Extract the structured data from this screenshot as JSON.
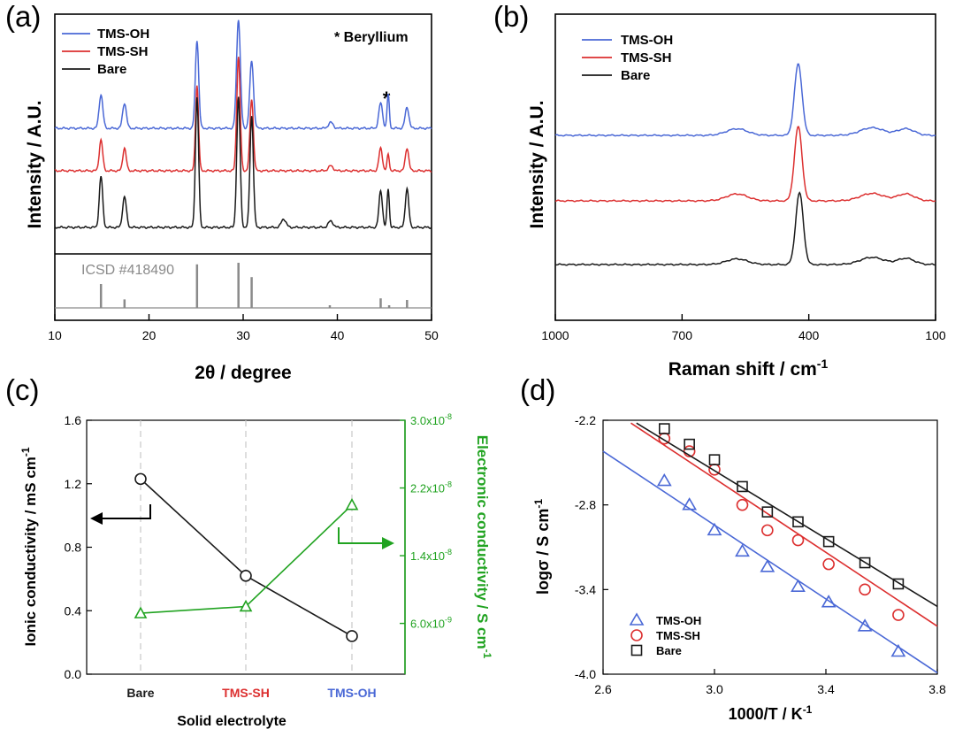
{
  "colors": {
    "blue": "#4a68d6",
    "red": "#dc2f2f",
    "black": "#1a1a1a",
    "green": "#21a321",
    "gray": "#8a8a8a",
    "grid": "#c8c8c8"
  },
  "chart_data": [
    {
      "panel": "(a)",
      "type": "line",
      "title": "",
      "xlabel": "2θ / degree",
      "ylabel": "Intensity / A.U.",
      "xlim": [
        10,
        50
      ],
      "xticks": [
        "10",
        "20",
        "30",
        "40",
        "50"
      ],
      "legend": [
        "TMS-OH",
        "TMS-SH",
        "Bare"
      ],
      "annotation": "* Beryllium",
      "star_mark": "*",
      "reference_label": "ICSD #418490",
      "series": [
        {
          "name": "TMS-OH",
          "color_key": "blue",
          "baseline": 0.0,
          "peaks": [
            [
              14.9,
              0.4,
              0.2
            ],
            [
              17.4,
              0.3,
              0.2
            ],
            [
              25.1,
              1.05,
              0.18
            ],
            [
              29.5,
              1.3,
              0.2
            ],
            [
              30.9,
              0.8,
              0.2
            ],
            [
              39.3,
              0.07,
              0.25
            ],
            [
              44.6,
              0.3,
              0.2
            ],
            [
              45.4,
              0.4,
              0.12
            ],
            [
              47.4,
              0.25,
              0.2
            ]
          ]
        },
        {
          "name": "TMS-SH",
          "color_key": "red",
          "baseline": 0.0,
          "peaks": [
            [
              14.9,
              0.38,
              0.18
            ],
            [
              17.4,
              0.28,
              0.18
            ],
            [
              25.1,
              1.05,
              0.16
            ],
            [
              29.5,
              1.4,
              0.18
            ],
            [
              30.9,
              0.88,
              0.18
            ],
            [
              39.3,
              0.06,
              0.25
            ],
            [
              44.6,
              0.28,
              0.18
            ],
            [
              45.4,
              0.2,
              0.12
            ],
            [
              47.4,
              0.28,
              0.18
            ]
          ]
        },
        {
          "name": "Bare",
          "color_key": "black",
          "baseline": 0.0,
          "peaks": [
            [
              14.9,
              0.55,
              0.18
            ],
            [
              17.4,
              0.33,
              0.2
            ],
            [
              25.1,
              1.4,
              0.17
            ],
            [
              29.5,
              1.4,
              0.18
            ],
            [
              30.9,
              1.2,
              0.18
            ],
            [
              34.3,
              0.09,
              0.25
            ],
            [
              39.3,
              0.07,
              0.25
            ],
            [
              44.6,
              0.4,
              0.18
            ],
            [
              45.4,
              0.42,
              0.12
            ],
            [
              47.4,
              0.42,
              0.18
            ]
          ]
        }
      ],
      "reference_peaks": [
        [
          14.9,
          0.45
        ],
        [
          17.4,
          0.16
        ],
        [
          25.1,
          0.82
        ],
        [
          29.5,
          0.85
        ],
        [
          30.9,
          0.58
        ],
        [
          39.2,
          0.05
        ],
        [
          44.6,
          0.18
        ],
        [
          45.5,
          0.05
        ],
        [
          47.4,
          0.15
        ]
      ]
    },
    {
      "panel": "(b)",
      "type": "line",
      "title": "",
      "xlabel": "Raman shift / cm",
      "xlabel_sup": "-1",
      "ylabel": "Intensity / A.U.",
      "xlim": [
        1000,
        100
      ],
      "xticks": [
        "1000",
        "700",
        "400",
        "100"
      ],
      "legend": [
        "TMS-OH",
        "TMS-SH",
        "Bare"
      ],
      "series": [
        {
          "name": "TMS-OH",
          "color_key": "blue",
          "peaks": [
            [
              425,
              1.3,
              9
            ],
            [
              570,
              0.12,
              25
            ],
            [
              250,
              0.14,
              28
            ],
            [
              170,
              0.12,
              20
            ]
          ]
        },
        {
          "name": "TMS-SH",
          "color_key": "red",
          "peaks": [
            [
              425,
              1.4,
              9
            ],
            [
              570,
              0.13,
              25
            ],
            [
              250,
              0.14,
              28
            ],
            [
              170,
              0.13,
              20
            ]
          ]
        },
        {
          "name": "Bare",
          "color_key": "black",
          "peaks": [
            [
              422,
              1.4,
              9
            ],
            [
              570,
              0.11,
              25
            ],
            [
              250,
              0.14,
              28
            ],
            [
              170,
              0.12,
              20
            ]
          ]
        }
      ]
    },
    {
      "panel": "(c)",
      "type": "line",
      "title": "",
      "xlabel": "Solid electrolyte",
      "ylabel": "Ionic conductivity / mS cm",
      "ylabel_sup": "-1",
      "y2label": "Electronic conductivity / S cm",
      "y2label_sup": "-1",
      "categories": [
        "Bare",
        "TMS-SH",
        "TMS-OH"
      ],
      "category_color_keys": [
        "black",
        "red",
        "blue"
      ],
      "ylim": [
        0.0,
        1.6
      ],
      "yticks": [
        "0.0",
        "0.4",
        "0.8",
        "1.2",
        "1.6"
      ],
      "y2ticks": [
        {
          "mant": "6.0x10",
          "exp": "-9",
          "value": 6e-09
        },
        {
          "mant": "1.4x10",
          "exp": "-8",
          "value": 1.4e-08
        },
        {
          "mant": "2.2x10",
          "exp": "-8",
          "value": 2.2e-08
        },
        {
          "mant": "3.0x10",
          "exp": "-8",
          "value": 3e-08
        }
      ],
      "y2lim": [
        0.0,
        3e-08
      ],
      "series": [
        {
          "name": "Ionic conductivity",
          "axis": "left",
          "marker": "circle",
          "color_key": "black",
          "values": [
            1.23,
            0.62,
            0.24
          ]
        },
        {
          "name": "Electronic conductivity",
          "axis": "right",
          "marker": "triangle",
          "color_key": "green",
          "values": [
            7.2e-09,
            8e-09,
            2e-08
          ]
        }
      ]
    },
    {
      "panel": "(d)",
      "type": "scatter",
      "title": "",
      "xlabel": "1000/T / K",
      "xlabel_sup": "-1",
      "ylabel": "logσ / S cm",
      "ylabel_sup": "-1",
      "xlim": [
        2.6,
        3.8
      ],
      "ylim": [
        -4.0,
        -2.2
      ],
      "xticks": [
        "2.6",
        "3.0",
        "3.4",
        "3.8"
      ],
      "yticks": [
        "-2.2",
        "-2.8",
        "-3.4",
        "-4.0"
      ],
      "legend": [
        "TMS-OH",
        "TMS-SH",
        "Bare"
      ],
      "series": [
        {
          "name": "TMS-OH",
          "marker": "triangle",
          "color_key": "blue",
          "x": [
            2.82,
            2.91,
            3.0,
            3.1,
            3.19,
            3.3,
            3.41,
            3.54,
            3.66
          ],
          "y": [
            -2.63,
            -2.8,
            -2.98,
            -3.13,
            -3.24,
            -3.38,
            -3.49,
            -3.66,
            -3.84
          ],
          "fit": [
            [
              2.6,
              -2.42
            ],
            [
              3.8,
              -3.99
            ]
          ]
        },
        {
          "name": "TMS-SH",
          "marker": "circle",
          "color_key": "red",
          "x": [
            2.82,
            2.91,
            3.0,
            3.1,
            3.19,
            3.3,
            3.41,
            3.54,
            3.66
          ],
          "y": [
            -2.33,
            -2.42,
            -2.55,
            -2.8,
            -2.98,
            -3.05,
            -3.22,
            -3.4,
            -3.58
          ],
          "fit": [
            [
              2.7,
              -2.22
            ],
            [
              3.8,
              -3.66
            ]
          ]
        },
        {
          "name": "Bare",
          "marker": "square",
          "color_key": "black",
          "x": [
            2.82,
            2.91,
            3.0,
            3.1,
            3.19,
            3.3,
            3.41,
            3.54,
            3.66
          ],
          "y": [
            -2.26,
            -2.37,
            -2.48,
            -2.67,
            -2.85,
            -2.92,
            -3.06,
            -3.21,
            -3.36
          ],
          "fit": [
            [
              2.72,
              -2.22
            ],
            [
              3.8,
              -3.52
            ]
          ]
        }
      ]
    }
  ]
}
